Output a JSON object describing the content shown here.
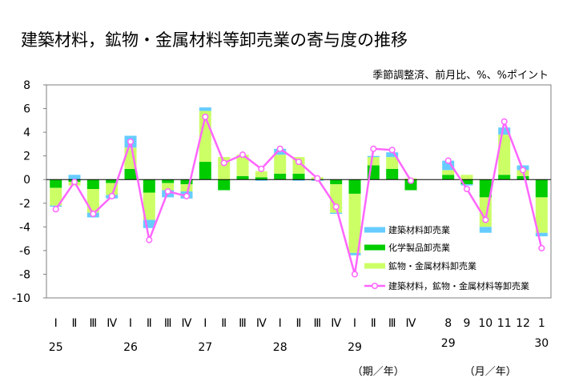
{
  "chart_data": {
    "type": "bar",
    "stacked": true,
    "title": "建築材料，鉱物・金属材料等卸売業の寄与度の推移",
    "unit_note": "季節調整済、前月比、%、%ポイント",
    "ylim": [
      -10,
      8
    ],
    "yticks": [
      "8",
      "6",
      "4",
      "2",
      "0",
      "-2",
      "-4",
      "-6",
      "-8",
      "-10"
    ],
    "ytick_values": [
      8,
      6,
      4,
      2,
      0,
      -2,
      -4,
      -6,
      -8,
      -10
    ],
    "grid": false,
    "legend_position": "bottom-right",
    "categories": [
      "Ⅰ",
      "Ⅱ",
      "Ⅲ",
      "Ⅳ",
      "Ⅰ",
      "Ⅱ",
      "Ⅲ",
      "Ⅳ",
      "Ⅰ",
      "Ⅱ",
      "Ⅲ",
      "Ⅳ",
      "Ⅰ",
      "Ⅱ",
      "Ⅲ",
      "Ⅳ",
      "Ⅰ",
      "Ⅱ",
      "Ⅲ",
      "Ⅳ",
      "",
      "8",
      "9",
      "10",
      "11",
      "12",
      "1"
    ],
    "year_labels": [
      {
        "label": "25",
        "index": 0
      },
      {
        "label": "26",
        "index": 4
      },
      {
        "label": "27",
        "index": 8
      },
      {
        "label": "28",
        "index": 12
      },
      {
        "label": "29",
        "index": 16
      },
      {
        "label": "29",
        "index": 21
      },
      {
        "label": "30",
        "index": 26
      }
    ],
    "axis_group_labels": [
      {
        "label": "（期／年）",
        "index": 17
      },
      {
        "label": "（月／年）",
        "index": 23
      }
    ],
    "series": [
      {
        "name": "建築材料卸売業",
        "color": "#66ccff",
        "values": [
          -0.1,
          0.4,
          -0.4,
          -0.3,
          1.0,
          -0.7,
          -0.6,
          -0.6,
          0.3,
          0.0,
          0.0,
          -0.1,
          0.5,
          -0.1,
          -0.1,
          -0.1,
          -0.2,
          0.1,
          0.4,
          0.0,
          null,
          0.8,
          -0.1,
          -0.5,
          0.6,
          0.4,
          -0.3
        ]
      },
      {
        "name": "化学製品卸売業",
        "color": "#00cc00",
        "values": [
          -0.7,
          -0.2,
          -0.8,
          -0.3,
          0.9,
          -1.1,
          -0.3,
          -0.4,
          1.5,
          -0.9,
          0.3,
          0.2,
          0.5,
          0.5,
          0.0,
          -0.4,
          -1.2,
          1.2,
          0.9,
          -0.9,
          null,
          0.4,
          -0.4,
          -1.5,
          0.4,
          0.3,
          -1.5
        ]
      },
      {
        "name": "鉱物・金属材料卸売業",
        "color": "#ccff66",
        "values": [
          -1.5,
          -0.3,
          -2.0,
          -1.0,
          1.8,
          -2.3,
          -0.6,
          -0.6,
          4.3,
          1.9,
          1.8,
          0.5,
          1.6,
          1.4,
          0.2,
          -2.4,
          -5.0,
          0.7,
          1.0,
          0.1,
          null,
          0.4,
          0.4,
          -2.5,
          3.4,
          0.5,
          -3.0
        ]
      },
      {
        "name": "建築材料，鉱物・金属材料等卸売業",
        "color": "#ff66ff",
        "type": "line",
        "values": [
          -2.5,
          -0.2,
          -2.9,
          -1.4,
          3.2,
          -5.1,
          -1.0,
          -1.4,
          5.3,
          1.4,
          2.1,
          0.9,
          2.6,
          1.5,
          0.1,
          -2.3,
          -8.0,
          2.6,
          2.5,
          -0.1,
          null,
          1.6,
          -0.8,
          -3.4,
          4.9,
          0.8,
          -5.8
        ]
      }
    ]
  }
}
